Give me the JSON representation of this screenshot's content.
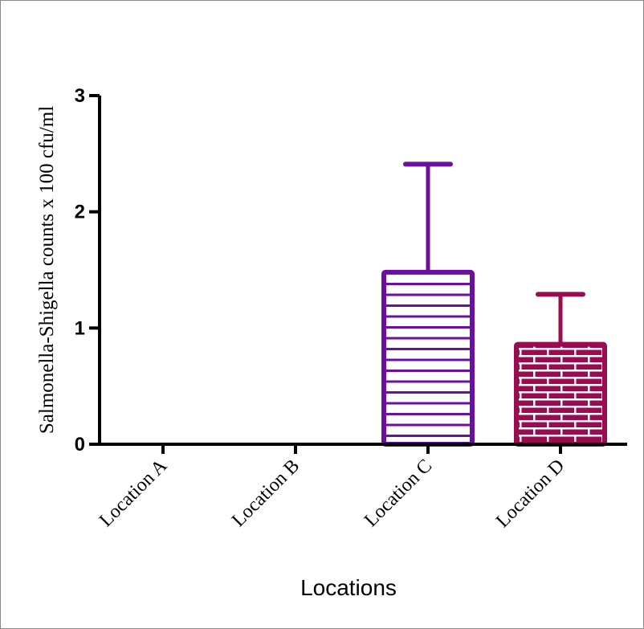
{
  "chart_data": {
    "type": "bar",
    "xlabel": "Locations",
    "ylabel": "Salmonella-Shigella counts x 100 cfu/ml",
    "categories": [
      "Location A",
      "Location B",
      "Location C",
      "Location D"
    ],
    "values": [
      0,
      0,
      1.48,
      0.86
    ],
    "error_upper": [
      0,
      0,
      2.41,
      1.29
    ],
    "ylim": [
      0,
      3
    ],
    "yticks": [
      "0",
      "1",
      "2",
      "3"
    ],
    "grid": false,
    "bar_colors": [
      "#6a0f9e",
      "#6a0f9e",
      "#6a0f9e",
      "#9a0c50"
    ],
    "bar_patterns": [
      "horizontal-lines",
      "horizontal-lines",
      "horizontal-lines",
      "brick"
    ]
  }
}
